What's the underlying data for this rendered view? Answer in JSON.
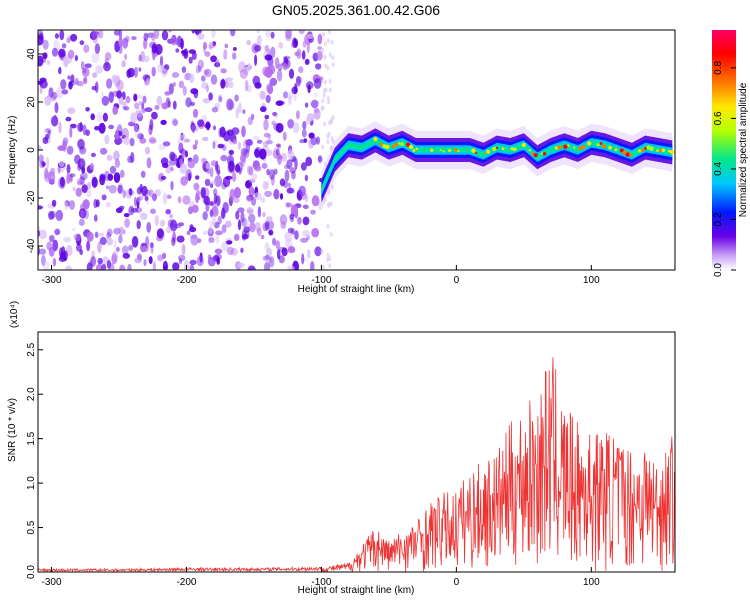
{
  "figure_title": "GN05.2025.361.00.42.G06",
  "colors": {
    "snr_line": "#ee3333",
    "rainbow": [
      "#ffffff",
      "#b56cf0",
      "#5a00e0",
      "#0018ff",
      "#00c8ff",
      "#00e68c",
      "#b4ff00",
      "#ffe800",
      "#ff7800",
      "#ff0000",
      "#ff0066"
    ]
  },
  "chart_data": [
    {
      "type": "heatmap",
      "xlabel": "Height of straight line (km)",
      "ylabel": "Frequency (Hz)",
      "xlim": [
        -310,
        162
      ],
      "ylim": [
        -50,
        50
      ],
      "x_ticks": [
        -300,
        -200,
        -100,
        0,
        100
      ],
      "y_ticks": [
        -40,
        -20,
        0,
        20,
        40
      ],
      "grid": false,
      "ridge": {
        "x": [
          -100,
          -90,
          -80,
          -70,
          -60,
          -50,
          -40,
          -30,
          -20,
          -10,
          0,
          10,
          20,
          30,
          40,
          50,
          60,
          70,
          80,
          90,
          100,
          110,
          120,
          130,
          140,
          150,
          160
        ],
        "frequency": [
          -17,
          -4,
          2,
          1,
          4,
          1,
          3,
          0,
          0,
          0,
          0,
          0,
          -2,
          1,
          0,
          2,
          -3,
          0,
          2,
          0,
          3,
          2,
          0,
          -2,
          1,
          0,
          -1
        ]
      },
      "noise_region_x": [
        -310,
        -100
      ],
      "colorbar": {
        "label": "Normalized spectral amplitude",
        "range": [
          0,
          0.95
        ],
        "ticks": [
          0.0,
          0.2,
          0.4,
          0.6,
          0.8
        ]
      }
    },
    {
      "type": "line",
      "xlabel": "Height of straight line (km)",
      "ylabel": "SNR (10 * v/v)",
      "y_scale_note": "(x10⁴)",
      "xlim": [
        -310,
        162
      ],
      "ylim": [
        0,
        2.7
      ],
      "x_ticks": [
        -300,
        -200,
        -100,
        0,
        100
      ],
      "y_ticks": [
        0.0,
        0.5,
        1.0,
        1.5,
        2.0,
        2.5
      ],
      "grid": false,
      "series": [
        {
          "x": [
            -310,
            -250,
            -200,
            -150,
            -100,
            -80,
            -70,
            -60,
            -50,
            -40,
            -30,
            -20,
            -10,
            0,
            10,
            20,
            30,
            40,
            50,
            60,
            70,
            80,
            90,
            100,
            110,
            120,
            130,
            140,
            150,
            160
          ],
          "y": [
            0.03,
            0.03,
            0.04,
            0.04,
            0.05,
            0.1,
            0.3,
            0.5,
            0.35,
            0.45,
            0.55,
            0.75,
            0.85,
            0.9,
            1.1,
            1.2,
            1.3,
            1.6,
            1.8,
            1.9,
            2.4,
            1.8,
            1.6,
            1.5,
            1.55,
            1.45,
            1.35,
            1.4,
            1.2,
            1.5
          ]
        }
      ]
    }
  ]
}
